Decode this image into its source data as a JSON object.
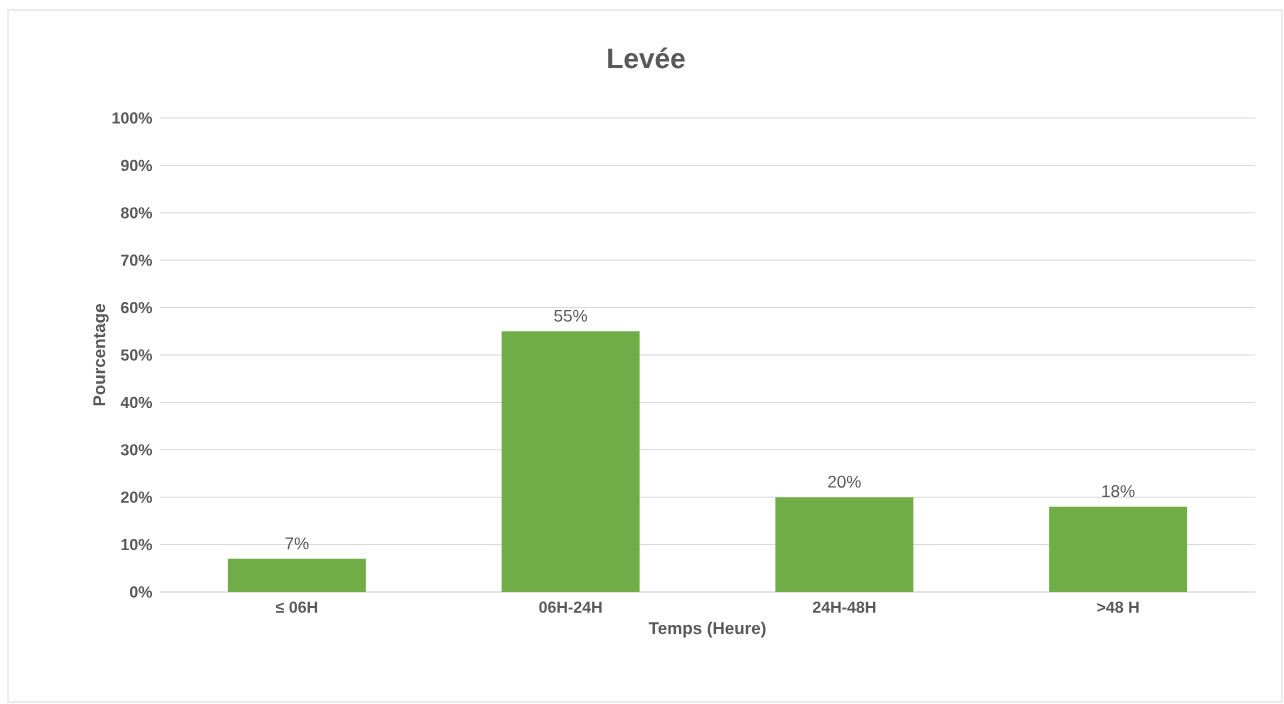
{
  "chart_data": {
    "type": "bar",
    "title": "Levée",
    "xlabel": "Temps (Heure)",
    "ylabel": "Pourcentage",
    "categories": [
      "≤ 06H",
      "06H-24H",
      "24H-48H",
      ">48 H"
    ],
    "values": [
      7,
      55,
      20,
      18
    ],
    "value_labels": [
      "7%",
      "55%",
      "20%",
      "18%"
    ],
    "color": "#70ad47",
    "ylim": [
      0,
      100
    ],
    "yticks": [
      {
        "value": 0,
        "label": "0%"
      },
      {
        "value": 10,
        "label": "10%"
      },
      {
        "value": 20,
        "label": "20%"
      },
      {
        "value": 30,
        "label": "30%"
      },
      {
        "value": 40,
        "label": "40%"
      },
      {
        "value": 50,
        "label": "50%"
      },
      {
        "value": 60,
        "label": "60%"
      },
      {
        "value": 70,
        "label": "70%"
      },
      {
        "value": 80,
        "label": "80%"
      },
      {
        "value": 90,
        "label": "90%"
      },
      {
        "value": 100,
        "label": "100%"
      }
    ],
    "grid": "y"
  }
}
